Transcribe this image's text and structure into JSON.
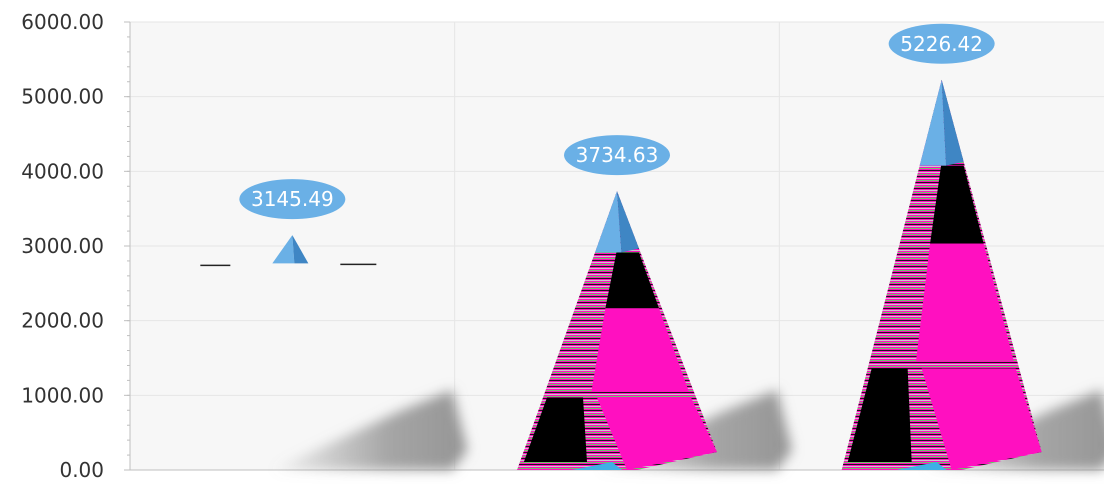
{
  "chart_data": {
    "type": "bar",
    "shape": "pyramid",
    "categories": [
      "",
      "",
      ""
    ],
    "values": [
      3145.49,
      3734.63,
      5226.42
    ],
    "data_labels": [
      "3145.49",
      "3734.63",
      "5226.42"
    ],
    "y_ticks": [
      "0.00",
      "1000.00",
      "2000.00",
      "3000.00",
      "4000.00",
      "5000.00",
      "6000.00"
    ],
    "ylim": [
      0,
      6000
    ],
    "grid": true,
    "legend": "none",
    "colors": {
      "pyramid_front": "#6ab0e6",
      "pyramid_side": "#3f86c4",
      "label_fill": "#6ab0e6",
      "label_text": "#ffffff",
      "glitch_magenta": "#ff10c0",
      "glitch_dark": "#000000",
      "grid": "#e6e6e6",
      "plot_bg": "#f7f7f7",
      "axis": "#bfbfbf",
      "shadow": "#9a9a9a"
    }
  }
}
